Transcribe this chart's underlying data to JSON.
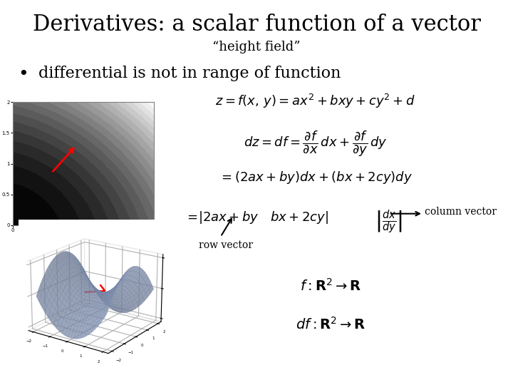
{
  "title": "Derivatives: a scalar function of a vector",
  "subtitle": "“height field”",
  "bullet": "differential is not in range of function",
  "label_row": "row vector",
  "label_col": "column vector",
  "bg_color": "#ffffff",
  "text_color": "#000000",
  "title_fontsize": 22,
  "subtitle_fontsize": 13,
  "bullet_fontsize": 16,
  "eq_fontsize": 13,
  "small_fontsize": 10
}
